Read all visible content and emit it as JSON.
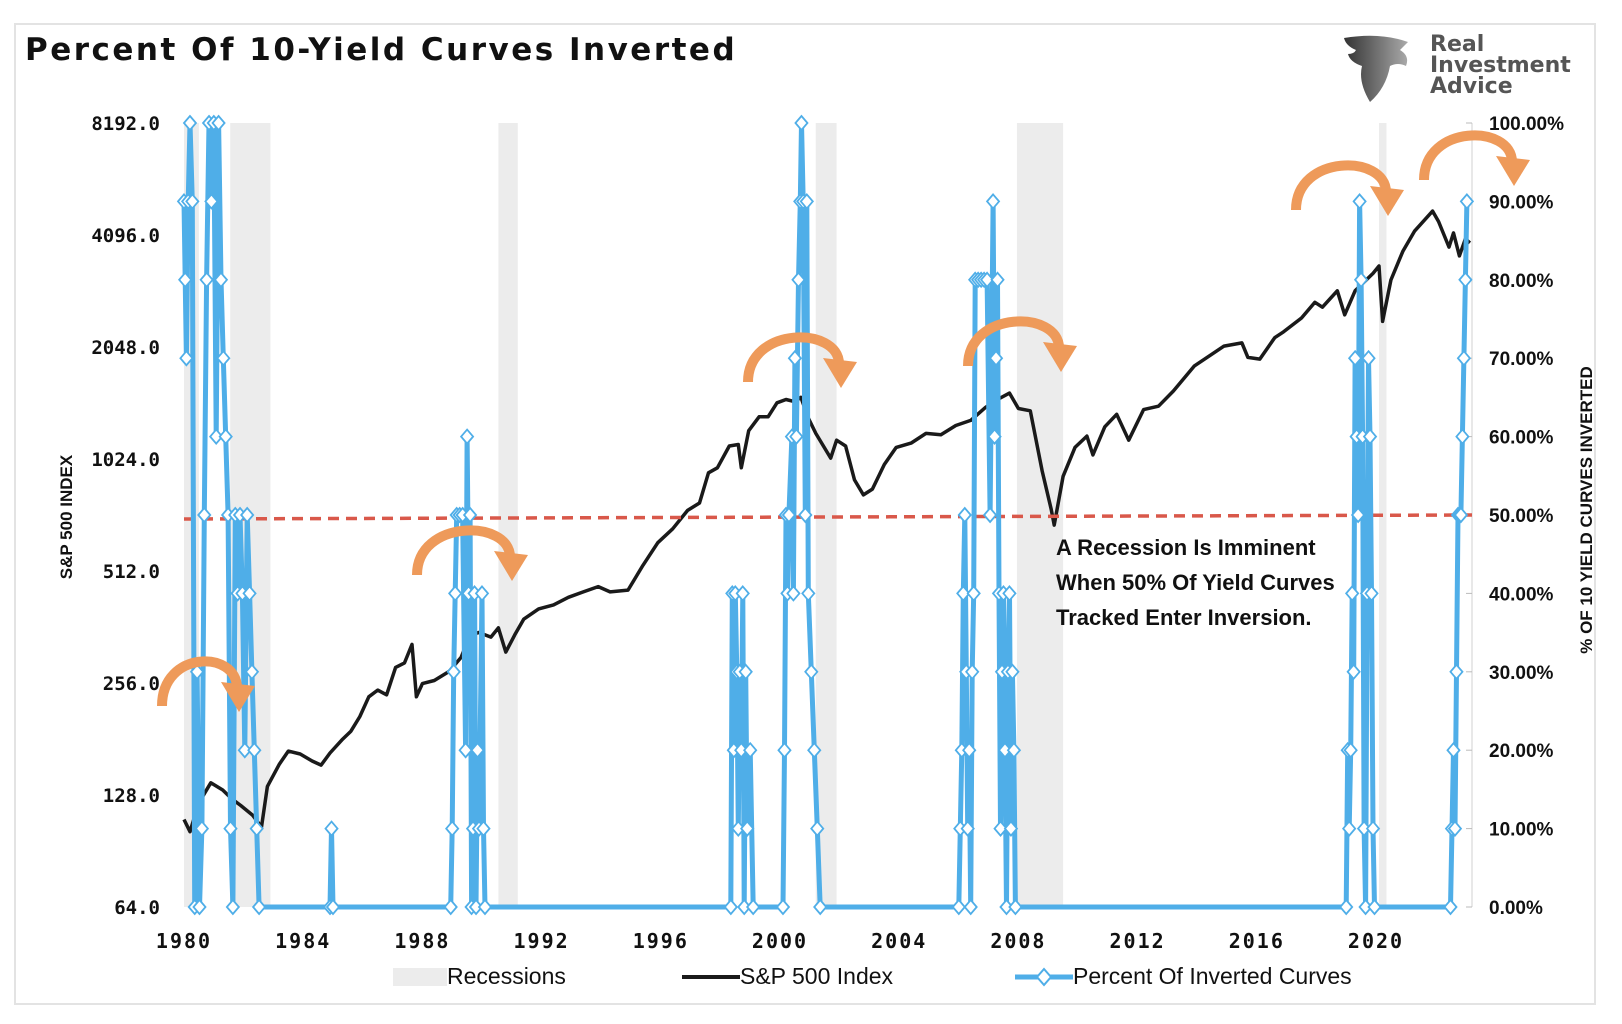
{
  "title": "Percent Of 10-Yield Curves Inverted",
  "logo": {
    "line1": "Real",
    "line2": "Investment",
    "line3": "Advice"
  },
  "annotation": [
    "A Recession Is Imminent",
    "When 50% Of Yield Curves",
    "Tracked Enter Inversion."
  ],
  "colors": {
    "sp500": "#1a1a1a",
    "inverted": "#4faee8",
    "threshold": "#d9584a",
    "recession": "#ececec",
    "arrow": "#ee9a5a"
  },
  "chart_data": {
    "type": "line",
    "title": "Percent Of 10-Yield Curves Inverted",
    "xlim": [
      1980,
      2023.3
    ],
    "x_ticks": [
      1980,
      1984,
      1988,
      1992,
      1996,
      2000,
      2004,
      2008,
      2012,
      2016,
      2020
    ],
    "y_left": {
      "label": "S&P 500 INDEX",
      "scale": "log2",
      "ticks": [
        "64.0",
        "128.0",
        "256.0",
        "512.0",
        "1024.0",
        "2048.0",
        "4096.0",
        "8192.0"
      ],
      "range": [
        64,
        8192
      ]
    },
    "y_right": {
      "label": "% OF 10 YIELD CURVES INVERTED",
      "ticks": [
        "0.00%",
        "10.00%",
        "20.00%",
        "30.00%",
        "40.00%",
        "50.00%",
        "60.00%",
        "70.00%",
        "80.00%",
        "90.00%",
        "100.00%"
      ],
      "range": [
        0,
        100
      ]
    },
    "threshold_pct": 50,
    "legend": [
      "Recessions",
      "S&P 500 Index",
      "Percent Of Inverted Curves"
    ],
    "recessions": [
      [
        1980.0,
        1980.5
      ],
      [
        1981.55,
        1982.9
      ],
      [
        1990.55,
        1991.2
      ],
      [
        2001.2,
        2001.9
      ],
      [
        2007.95,
        2009.5
      ],
      [
        2020.1,
        2020.35
      ]
    ],
    "sp500": [
      [
        1980,
        110
      ],
      [
        1980.2,
        102
      ],
      [
        1980.5,
        122
      ],
      [
        1980.9,
        138
      ],
      [
        1981.3,
        132
      ],
      [
        1981.6,
        125
      ],
      [
        1981.9,
        120
      ],
      [
        1982.3,
        113
      ],
      [
        1982.6,
        105
      ],
      [
        1982.8,
        135
      ],
      [
        1983.2,
        155
      ],
      [
        1983.5,
        168
      ],
      [
        1983.9,
        165
      ],
      [
        1984.3,
        158
      ],
      [
        1984.6,
        154
      ],
      [
        1984.9,
        166
      ],
      [
        1985.3,
        180
      ],
      [
        1985.6,
        190
      ],
      [
        1985.9,
        208
      ],
      [
        1986.2,
        235
      ],
      [
        1986.5,
        245
      ],
      [
        1986.8,
        238
      ],
      [
        1987.1,
        282
      ],
      [
        1987.4,
        290
      ],
      [
        1987.65,
        325
      ],
      [
        1987.8,
        235
      ],
      [
        1988.0,
        255
      ],
      [
        1988.4,
        260
      ],
      [
        1988.9,
        275
      ],
      [
        1989.3,
        300
      ],
      [
        1989.6,
        345
      ],
      [
        1989.9,
        350
      ],
      [
        1990.3,
        340
      ],
      [
        1990.55,
        360
      ],
      [
        1990.8,
        310
      ],
      [
        1991.1,
        345
      ],
      [
        1991.4,
        380
      ],
      [
        1991.9,
        405
      ],
      [
        1992.4,
        415
      ],
      [
        1992.9,
        435
      ],
      [
        1993.4,
        450
      ],
      [
        1993.9,
        465
      ],
      [
        1994.3,
        450
      ],
      [
        1994.9,
        455
      ],
      [
        1995.4,
        530
      ],
      [
        1995.9,
        610
      ],
      [
        1996.4,
        665
      ],
      [
        1996.9,
        745
      ],
      [
        1997.3,
        780
      ],
      [
        1997.6,
        940
      ],
      [
        1997.9,
        970
      ],
      [
        1998.3,
        1110
      ],
      [
        1998.6,
        1120
      ],
      [
        1998.7,
        970
      ],
      [
        1998.95,
        1220
      ],
      [
        1999.3,
        1330
      ],
      [
        1999.6,
        1330
      ],
      [
        1999.9,
        1450
      ],
      [
        2000.2,
        1480
      ],
      [
        2000.5,
        1460
      ],
      [
        2000.7,
        1500
      ],
      [
        2000.95,
        1320
      ],
      [
        2001.2,
        1200
      ],
      [
        2001.7,
        1030
      ],
      [
        2001.9,
        1150
      ],
      [
        2002.2,
        1110
      ],
      [
        2002.5,
        900
      ],
      [
        2002.8,
        820
      ],
      [
        2003.1,
        850
      ],
      [
        2003.5,
        990
      ],
      [
        2003.9,
        1100
      ],
      [
        2004.4,
        1130
      ],
      [
        2004.9,
        1200
      ],
      [
        2005.4,
        1190
      ],
      [
        2005.9,
        1260
      ],
      [
        2006.4,
        1300
      ],
      [
        2006.9,
        1410
      ],
      [
        2007.3,
        1480
      ],
      [
        2007.7,
        1540
      ],
      [
        2008.0,
        1400
      ],
      [
        2008.4,
        1380
      ],
      [
        2008.8,
        950
      ],
      [
        2009.1,
        750
      ],
      [
        2009.2,
        680
      ],
      [
        2009.5,
        920
      ],
      [
        2009.9,
        1100
      ],
      [
        2010.3,
        1180
      ],
      [
        2010.5,
        1050
      ],
      [
        2010.9,
        1250
      ],
      [
        2011.3,
        1350
      ],
      [
        2011.7,
        1150
      ],
      [
        2012.2,
        1390
      ],
      [
        2012.7,
        1420
      ],
      [
        2013.2,
        1560
      ],
      [
        2013.9,
        1820
      ],
      [
        2014.5,
        1960
      ],
      [
        2014.9,
        2060
      ],
      [
        2015.5,
        2100
      ],
      [
        2015.7,
        1920
      ],
      [
        2016.1,
        1900
      ],
      [
        2016.6,
        2170
      ],
      [
        2016.9,
        2250
      ],
      [
        2017.5,
        2450
      ],
      [
        2017.95,
        2700
      ],
      [
        2018.2,
        2620
      ],
      [
        2018.7,
        2900
      ],
      [
        2018.95,
        2500
      ],
      [
        2019.3,
        2900
      ],
      [
        2019.9,
        3230
      ],
      [
        2020.1,
        3380
      ],
      [
        2020.22,
        2400
      ],
      [
        2020.5,
        3100
      ],
      [
        2020.9,
        3700
      ],
      [
        2021.3,
        4200
      ],
      [
        2021.9,
        4750
      ],
      [
        2022.1,
        4450
      ],
      [
        2022.45,
        3800
      ],
      [
        2022.6,
        4150
      ],
      [
        2022.8,
        3600
      ],
      [
        2023.0,
        4000
      ],
      [
        2023.15,
        3900
      ]
    ],
    "inverted_pct": [
      [
        1980,
        90
      ],
      [
        1980.04,
        80
      ],
      [
        1980.08,
        70
      ],
      [
        1980.14,
        90
      ],
      [
        1980.2,
        100
      ],
      [
        1980.28,
        90
      ],
      [
        1980.36,
        0
      ],
      [
        1980.44,
        30
      ],
      [
        1980.52,
        0
      ],
      [
        1980.6,
        10
      ],
      [
        1980.68,
        50
      ],
      [
        1980.76,
        80
      ],
      [
        1980.84,
        100
      ],
      [
        1980.92,
        90
      ],
      [
        1981,
        100
      ],
      [
        1981.08,
        60
      ],
      [
        1981.16,
        100
      ],
      [
        1981.24,
        80
      ],
      [
        1981.32,
        70
      ],
      [
        1981.4,
        60
      ],
      [
        1981.48,
        50
      ],
      [
        1981.56,
        10
      ],
      [
        1981.64,
        0
      ],
      [
        1981.72,
        50
      ],
      [
        1981.8,
        40
      ],
      [
        1981.88,
        50
      ],
      [
        1981.96,
        40
      ],
      [
        1982.04,
        20
      ],
      [
        1982.12,
        50
      ],
      [
        1982.2,
        40
      ],
      [
        1982.28,
        30
      ],
      [
        1982.36,
        20
      ],
      [
        1982.44,
        10
      ],
      [
        1982.52,
        0
      ],
      [
        1984.9,
        0
      ],
      [
        1984.95,
        10
      ],
      [
        1985.0,
        0
      ],
      [
        1988.95,
        0
      ],
      [
        1989.0,
        10
      ],
      [
        1989.05,
        30
      ],
      [
        1989.1,
        40
      ],
      [
        1989.15,
        50
      ],
      [
        1989.25,
        50
      ],
      [
        1989.35,
        50
      ],
      [
        1989.45,
        20
      ],
      [
        1989.5,
        60
      ],
      [
        1989.55,
        40
      ],
      [
        1989.6,
        50
      ],
      [
        1989.65,
        0
      ],
      [
        1989.7,
        10
      ],
      [
        1989.75,
        40
      ],
      [
        1989.8,
        0
      ],
      [
        1989.85,
        20
      ],
      [
        1989.9,
        10
      ],
      [
        1990.0,
        40
      ],
      [
        1990.05,
        10
      ],
      [
        1990.1,
        0
      ],
      [
        1998.35,
        0
      ],
      [
        1998.4,
        40
      ],
      [
        1998.45,
        20
      ],
      [
        1998.5,
        40
      ],
      [
        1998.55,
        30
      ],
      [
        1998.6,
        10
      ],
      [
        1998.65,
        30
      ],
      [
        1998.7,
        20
      ],
      [
        1998.75,
        40
      ],
      [
        1998.8,
        0
      ],
      [
        1998.85,
        30
      ],
      [
        1998.9,
        10
      ],
      [
        1999.0,
        20
      ],
      [
        1999.1,
        0
      ],
      [
        2000.1,
        0
      ],
      [
        2000.15,
        20
      ],
      [
        2000.2,
        50
      ],
      [
        2000.25,
        40
      ],
      [
        2000.3,
        50
      ],
      [
        2000.4,
        60
      ],
      [
        2000.45,
        40
      ],
      [
        2000.5,
        70
      ],
      [
        2000.55,
        60
      ],
      [
        2000.62,
        80
      ],
      [
        2000.68,
        90
      ],
      [
        2000.72,
        100
      ],
      [
        2000.78,
        90
      ],
      [
        2000.85,
        50
      ],
      [
        2000.9,
        90
      ],
      [
        2000.95,
        40
      ],
      [
        2001.05,
        30
      ],
      [
        2001.15,
        20
      ],
      [
        2001.25,
        10
      ],
      [
        2001.35,
        0
      ],
      [
        2006.0,
        0
      ],
      [
        2006.05,
        10
      ],
      [
        2006.1,
        20
      ],
      [
        2006.15,
        40
      ],
      [
        2006.2,
        50
      ],
      [
        2006.25,
        30
      ],
      [
        2006.3,
        10
      ],
      [
        2006.35,
        20
      ],
      [
        2006.4,
        0
      ],
      [
        2006.45,
        30
      ],
      [
        2006.5,
        40
      ],
      [
        2006.55,
        80
      ],
      [
        2006.65,
        80
      ],
      [
        2006.75,
        80
      ],
      [
        2006.85,
        80
      ],
      [
        2006.95,
        80
      ],
      [
        2007.05,
        50
      ],
      [
        2007.15,
        90
      ],
      [
        2007.2,
        60
      ],
      [
        2007.25,
        70
      ],
      [
        2007.3,
        80
      ],
      [
        2007.35,
        40
      ],
      [
        2007.4,
        10
      ],
      [
        2007.45,
        30
      ],
      [
        2007.5,
        40
      ],
      [
        2007.55,
        20
      ],
      [
        2007.6,
        0
      ],
      [
        2007.65,
        30
      ],
      [
        2007.7,
        40
      ],
      [
        2007.75,
        10
      ],
      [
        2007.8,
        30
      ],
      [
        2007.85,
        20
      ],
      [
        2007.9,
        0
      ],
      [
        2019.0,
        0
      ],
      [
        2019.05,
        20
      ],
      [
        2019.1,
        10
      ],
      [
        2019.15,
        20
      ],
      [
        2019.2,
        40
      ],
      [
        2019.25,
        30
      ],
      [
        2019.3,
        70
      ],
      [
        2019.35,
        60
      ],
      [
        2019.4,
        50
      ],
      [
        2019.45,
        90
      ],
      [
        2019.5,
        80
      ],
      [
        2019.55,
        60
      ],
      [
        2019.6,
        10
      ],
      [
        2019.65,
        0
      ],
      [
        2019.7,
        40
      ],
      [
        2019.75,
        70
      ],
      [
        2019.8,
        60
      ],
      [
        2019.85,
        40
      ],
      [
        2019.9,
        10
      ],
      [
        2019.95,
        0
      ],
      [
        2022.5,
        0
      ],
      [
        2022.55,
        10
      ],
      [
        2022.6,
        20
      ],
      [
        2022.65,
        10
      ],
      [
        2022.7,
        30
      ],
      [
        2022.75,
        50
      ],
      [
        2022.8,
        50
      ],
      [
        2022.85,
        50
      ],
      [
        2022.9,
        60
      ],
      [
        2022.95,
        70
      ],
      [
        2023.0,
        80
      ],
      [
        2023.05,
        90
      ]
    ]
  }
}
